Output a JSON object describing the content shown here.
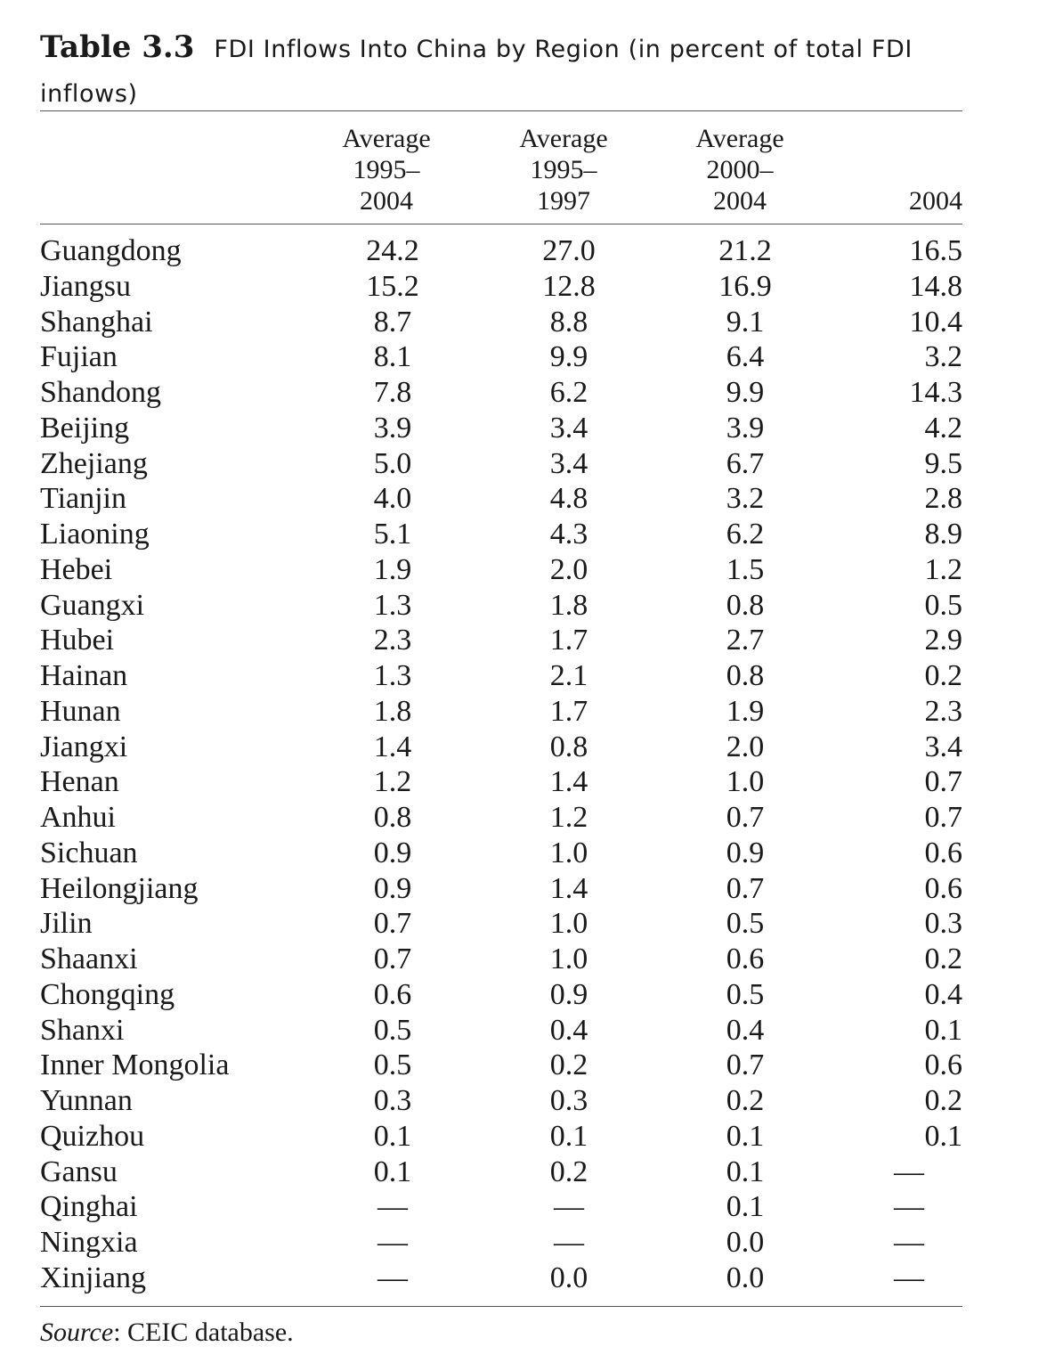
{
  "caption": {
    "number": "Table 3.3",
    "title": "FDI Inflows Into China by Region (in percent of total FDI inflows)"
  },
  "columns": [
    {
      "lines": [
        "Average",
        "1995–",
        "2004"
      ]
    },
    {
      "lines": [
        "Average",
        "1995–",
        "1997"
      ]
    },
    {
      "lines": [
        "Average",
        "2000–",
        "2004"
      ]
    },
    {
      "lines": [
        "2004"
      ]
    }
  ],
  "rows": [
    {
      "region": "Guangdong",
      "values": [
        "24.2",
        "27.0",
        "21.2",
        "16.5"
      ]
    },
    {
      "region": "Jiangsu",
      "values": [
        "15.2",
        "12.8",
        "16.9",
        "14.8"
      ]
    },
    {
      "region": "Shanghai",
      "values": [
        "8.7",
        "8.8",
        "9.1",
        "10.4"
      ]
    },
    {
      "region": "Fujian",
      "values": [
        "8.1",
        "9.9",
        "6.4",
        "3.2"
      ]
    },
    {
      "region": "Shandong",
      "values": [
        "7.8",
        "6.2",
        "9.9",
        "14.3"
      ]
    },
    {
      "region": "Beijing",
      "values": [
        "3.9",
        "3.4",
        "3.9",
        "4.2"
      ]
    },
    {
      "region": "Zhejiang",
      "values": [
        "5.0",
        "3.4",
        "6.7",
        "9.5"
      ]
    },
    {
      "region": "Tianjin",
      "values": [
        "4.0",
        "4.8",
        "3.2",
        "2.8"
      ]
    },
    {
      "region": "Liaoning",
      "values": [
        "5.1",
        "4.3",
        "6.2",
        "8.9"
      ]
    },
    {
      "region": "Hebei",
      "values": [
        "1.9",
        "2.0",
        "1.5",
        "1.2"
      ]
    },
    {
      "region": "Guangxi",
      "values": [
        "1.3",
        "1.8",
        "0.8",
        "0.5"
      ]
    },
    {
      "region": "Hubei",
      "values": [
        "2.3",
        "1.7",
        "2.7",
        "2.9"
      ]
    },
    {
      "region": "Hainan",
      "values": [
        "1.3",
        "2.1",
        "0.8",
        "0.2"
      ]
    },
    {
      "region": "Hunan",
      "values": [
        "1.8",
        "1.7",
        "1.9",
        "2.3"
      ]
    },
    {
      "region": "Jiangxi",
      "values": [
        "1.4",
        "0.8",
        "2.0",
        "3.4"
      ]
    },
    {
      "region": "Henan",
      "values": [
        "1.2",
        "1.4",
        "1.0",
        "0.7"
      ]
    },
    {
      "region": "Anhui",
      "values": [
        "0.8",
        "1.2",
        "0.7",
        "0.7"
      ]
    },
    {
      "region": "Sichuan",
      "values": [
        "0.9",
        "1.0",
        "0.9",
        "0.6"
      ]
    },
    {
      "region": "Heilongjiang",
      "values": [
        "0.9",
        "1.4",
        "0.7",
        "0.6"
      ]
    },
    {
      "region": "Jilin",
      "values": [
        "0.7",
        "1.0",
        "0.5",
        "0.3"
      ]
    },
    {
      "region": "Shaanxi",
      "values": [
        "0.7",
        "1.0",
        "0.6",
        "0.2"
      ]
    },
    {
      "region": "Chongqing",
      "values": [
        "0.6",
        "0.9",
        "0.5",
        "0.4"
      ]
    },
    {
      "region": "Shanxi",
      "values": [
        "0.5",
        "0.4",
        "0.4",
        "0.1"
      ]
    },
    {
      "region": "Inner Mongolia",
      "values": [
        "0.5",
        "0.2",
        "0.7",
        "0.6"
      ]
    },
    {
      "region": "Yunnan",
      "values": [
        "0.3",
        "0.3",
        "0.2",
        "0.2"
      ]
    },
    {
      "region": "Quizhou",
      "values": [
        "0.1",
        "0.1",
        "0.1",
        "0.1"
      ]
    },
    {
      "region": "Gansu",
      "values": [
        "0.1",
        "0.2",
        "0.1",
        "—"
      ]
    },
    {
      "region": "Qinghai",
      "values": [
        "—",
        "—",
        "0.1",
        "—"
      ]
    },
    {
      "region": "Ningxia",
      "values": [
        "—",
        "—",
        "0.0",
        "—"
      ]
    },
    {
      "region": "Xinjiang",
      "values": [
        "—",
        "0.0",
        "0.0",
        "—"
      ]
    }
  ],
  "source": {
    "label": "Source",
    "text": ": CEIC database."
  }
}
